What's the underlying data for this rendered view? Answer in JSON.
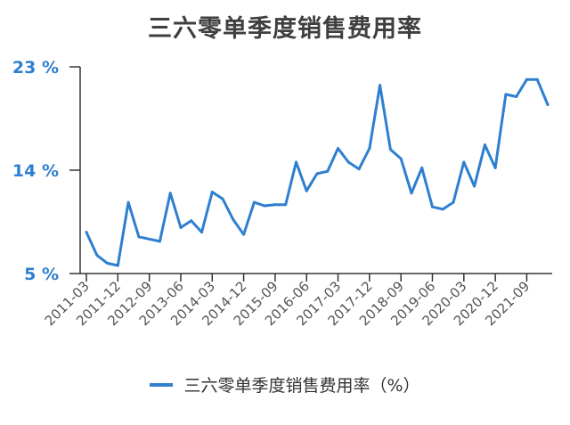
{
  "chart_data": {
    "type": "line",
    "title": "三六零单季度销售费用率",
    "xlabel": "",
    "ylabel": "",
    "y_unit_suffix": " %",
    "ylim": [
      5,
      23
    ],
    "yticks": [
      5,
      14,
      23
    ],
    "grid": false,
    "legend_position": "bottom",
    "color": "#2f7fd0",
    "x_tick_labels": [
      "2011-03",
      "2011-12",
      "2012-09",
      "2013-06",
      "2014-03",
      "2014-12",
      "2015-09",
      "2016-06",
      "2017-03",
      "2017-12",
      "2018-09",
      "2019-06",
      "2020-03",
      "2020-12",
      "2021-09"
    ],
    "series": [
      {
        "name": "三六零单季度销售费用率（%）",
        "x": [
          "2011-03",
          "2011-06",
          "2011-09",
          "2011-12",
          "2012-03",
          "2012-06",
          "2012-09",
          "2012-12",
          "2013-03",
          "2013-06",
          "2013-09",
          "2013-12",
          "2014-03",
          "2014-06",
          "2014-09",
          "2014-12",
          "2015-03",
          "2015-06",
          "2015-09",
          "2015-12",
          "2016-03",
          "2016-06",
          "2016-09",
          "2016-12",
          "2017-03",
          "2017-06",
          "2017-09",
          "2017-12",
          "2018-03",
          "2018-06",
          "2018-09",
          "2018-12",
          "2019-03",
          "2019-06",
          "2019-09",
          "2019-12",
          "2020-03",
          "2020-06",
          "2020-09",
          "2020-12",
          "2021-03",
          "2021-06",
          "2021-09",
          "2021-12",
          "2022-03"
        ],
        "values": [
          8.6,
          6.6,
          5.9,
          5.7,
          11.2,
          8.2,
          8.0,
          7.8,
          12.0,
          9.0,
          9.6,
          8.6,
          12.1,
          11.5,
          9.7,
          8.4,
          11.2,
          10.9,
          11.0,
          11.0,
          14.7,
          12.2,
          13.7,
          13.9,
          15.9,
          14.7,
          14.1,
          15.9,
          21.4,
          15.8,
          15.0,
          12.0,
          14.2,
          10.8,
          10.6,
          11.2,
          14.7,
          12.6,
          16.2,
          14.2,
          20.6,
          20.4,
          21.9,
          21.9,
          19.7
        ]
      }
    ]
  }
}
